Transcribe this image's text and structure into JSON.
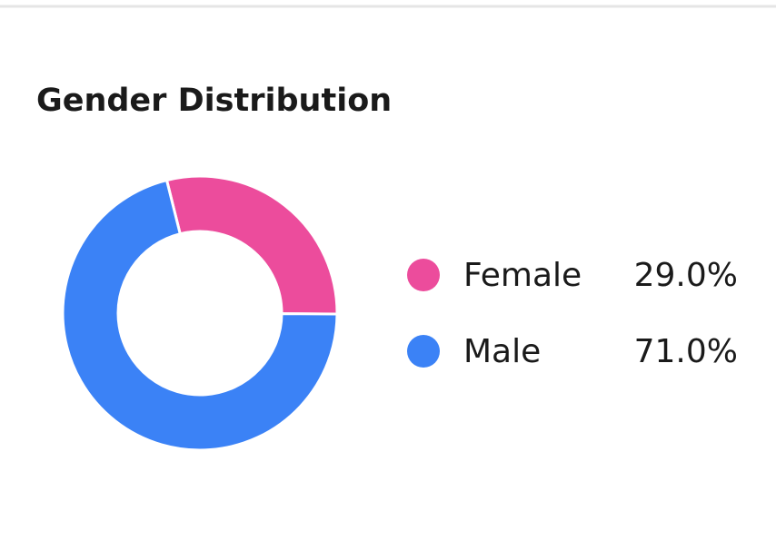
{
  "chart_data": {
    "type": "donut",
    "title": "Gender Distribution",
    "categories": [
      "Female",
      "Male"
    ],
    "values": [
      29.0,
      71.0
    ],
    "value_labels": [
      "29.0%",
      "71.0%"
    ],
    "colors": [
      "#ec4c9c",
      "#3b82f6"
    ]
  }
}
